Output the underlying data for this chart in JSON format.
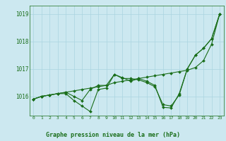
{
  "title": "Graphe pression niveau de la mer (hPa)",
  "xlim": [
    -0.5,
    23.5
  ],
  "ylim": [
    1015.3,
    1019.3
  ],
  "yticks": [
    1016,
    1017,
    1018,
    1019
  ],
  "xticks": [
    0,
    1,
    2,
    3,
    4,
    5,
    6,
    7,
    8,
    9,
    10,
    11,
    12,
    13,
    14,
    15,
    16,
    17,
    18,
    19,
    20,
    21,
    22,
    23
  ],
  "background_color": "#cce8f0",
  "grid_color": "#aad4e0",
  "line_color": "#1a6e1a",
  "markersize": 2.0,
  "linewidth": 0.8,
  "series": [
    [
      1015.9,
      1016.0,
      1016.05,
      1016.1,
      1016.15,
      1016.2,
      1016.25,
      1016.3,
      1016.35,
      1016.4,
      1016.5,
      1016.55,
      1016.6,
      1016.65,
      1016.7,
      1016.75,
      1016.8,
      1016.85,
      1016.9,
      1016.95,
      1017.05,
      1017.3,
      1017.9,
      1019.0
    ],
    [
      1015.9,
      1016.0,
      1016.05,
      1016.1,
      1016.15,
      1016.0,
      1015.85,
      1016.25,
      1016.4,
      1016.4,
      1016.8,
      1016.65,
      1016.65,
      1016.6,
      1016.5,
      1016.35,
      1015.7,
      1015.65,
      1016.05,
      1017.0,
      1017.5,
      1017.75,
      1018.1,
      1019.0
    ],
    [
      1015.9,
      1016.0,
      1016.05,
      1016.1,
      1016.1,
      1015.85,
      1015.65,
      1015.45,
      1016.25,
      1016.3,
      1016.8,
      1016.68,
      1016.55,
      1016.65,
      1016.55,
      1016.4,
      1015.6,
      1015.58,
      1016.1,
      1017.0,
      1017.5,
      1017.75,
      1018.1,
      1019.0
    ]
  ]
}
